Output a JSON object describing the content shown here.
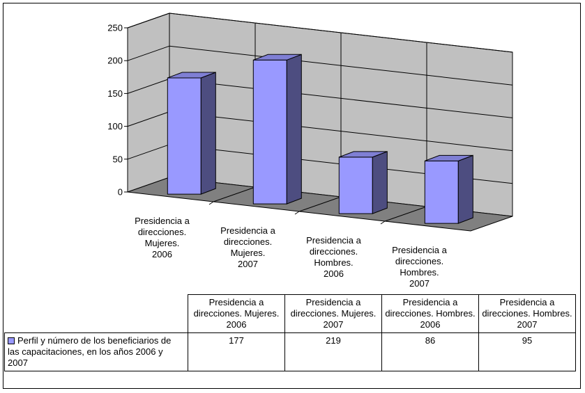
{
  "chart_data": {
    "type": "bar",
    "title": "",
    "xlabel": "",
    "ylabel": "",
    "ylim": [
      0,
      250
    ],
    "yticks": [
      0,
      50,
      100,
      150,
      200,
      250
    ],
    "grid": true,
    "categories": [
      "Presidencia a direcciones. Mujeres. 2006",
      "Presidencia a direcciones. Mujeres. 2007",
      "Presidencia a direcciones. Hombres. 2006",
      "Presidencia a direcciones. Hombres. 2007"
    ],
    "series": [
      {
        "name": "Perfil y número de los beneficiarios de las capacitaciones, en los años 2006 y 2007",
        "values": [
          177,
          219,
          86,
          95
        ],
        "color": "#9999FF"
      }
    ]
  },
  "table": {
    "headers": [
      "Presidencia a direcciones. Mujeres. 2006",
      "Presidencia a direcciones. Mujeres. 2007",
      "Presidencia a direcciones. Hombres. 2006",
      "Presidencia a direcciones. Hombres. 2007"
    ],
    "legend_label": "Perfil y número de los beneficiarios de las capacitaciones, en los años 2006 y 2007",
    "values": [
      "177",
      "219",
      "86",
      "95"
    ]
  },
  "colors": {
    "bar_front": "#9999FF",
    "bar_side": "#4D4D80",
    "bar_top": "#7F7FD4",
    "back_wall": "#C0C0C0",
    "side_wall": "#C0C0C0",
    "floor": "#808080"
  }
}
